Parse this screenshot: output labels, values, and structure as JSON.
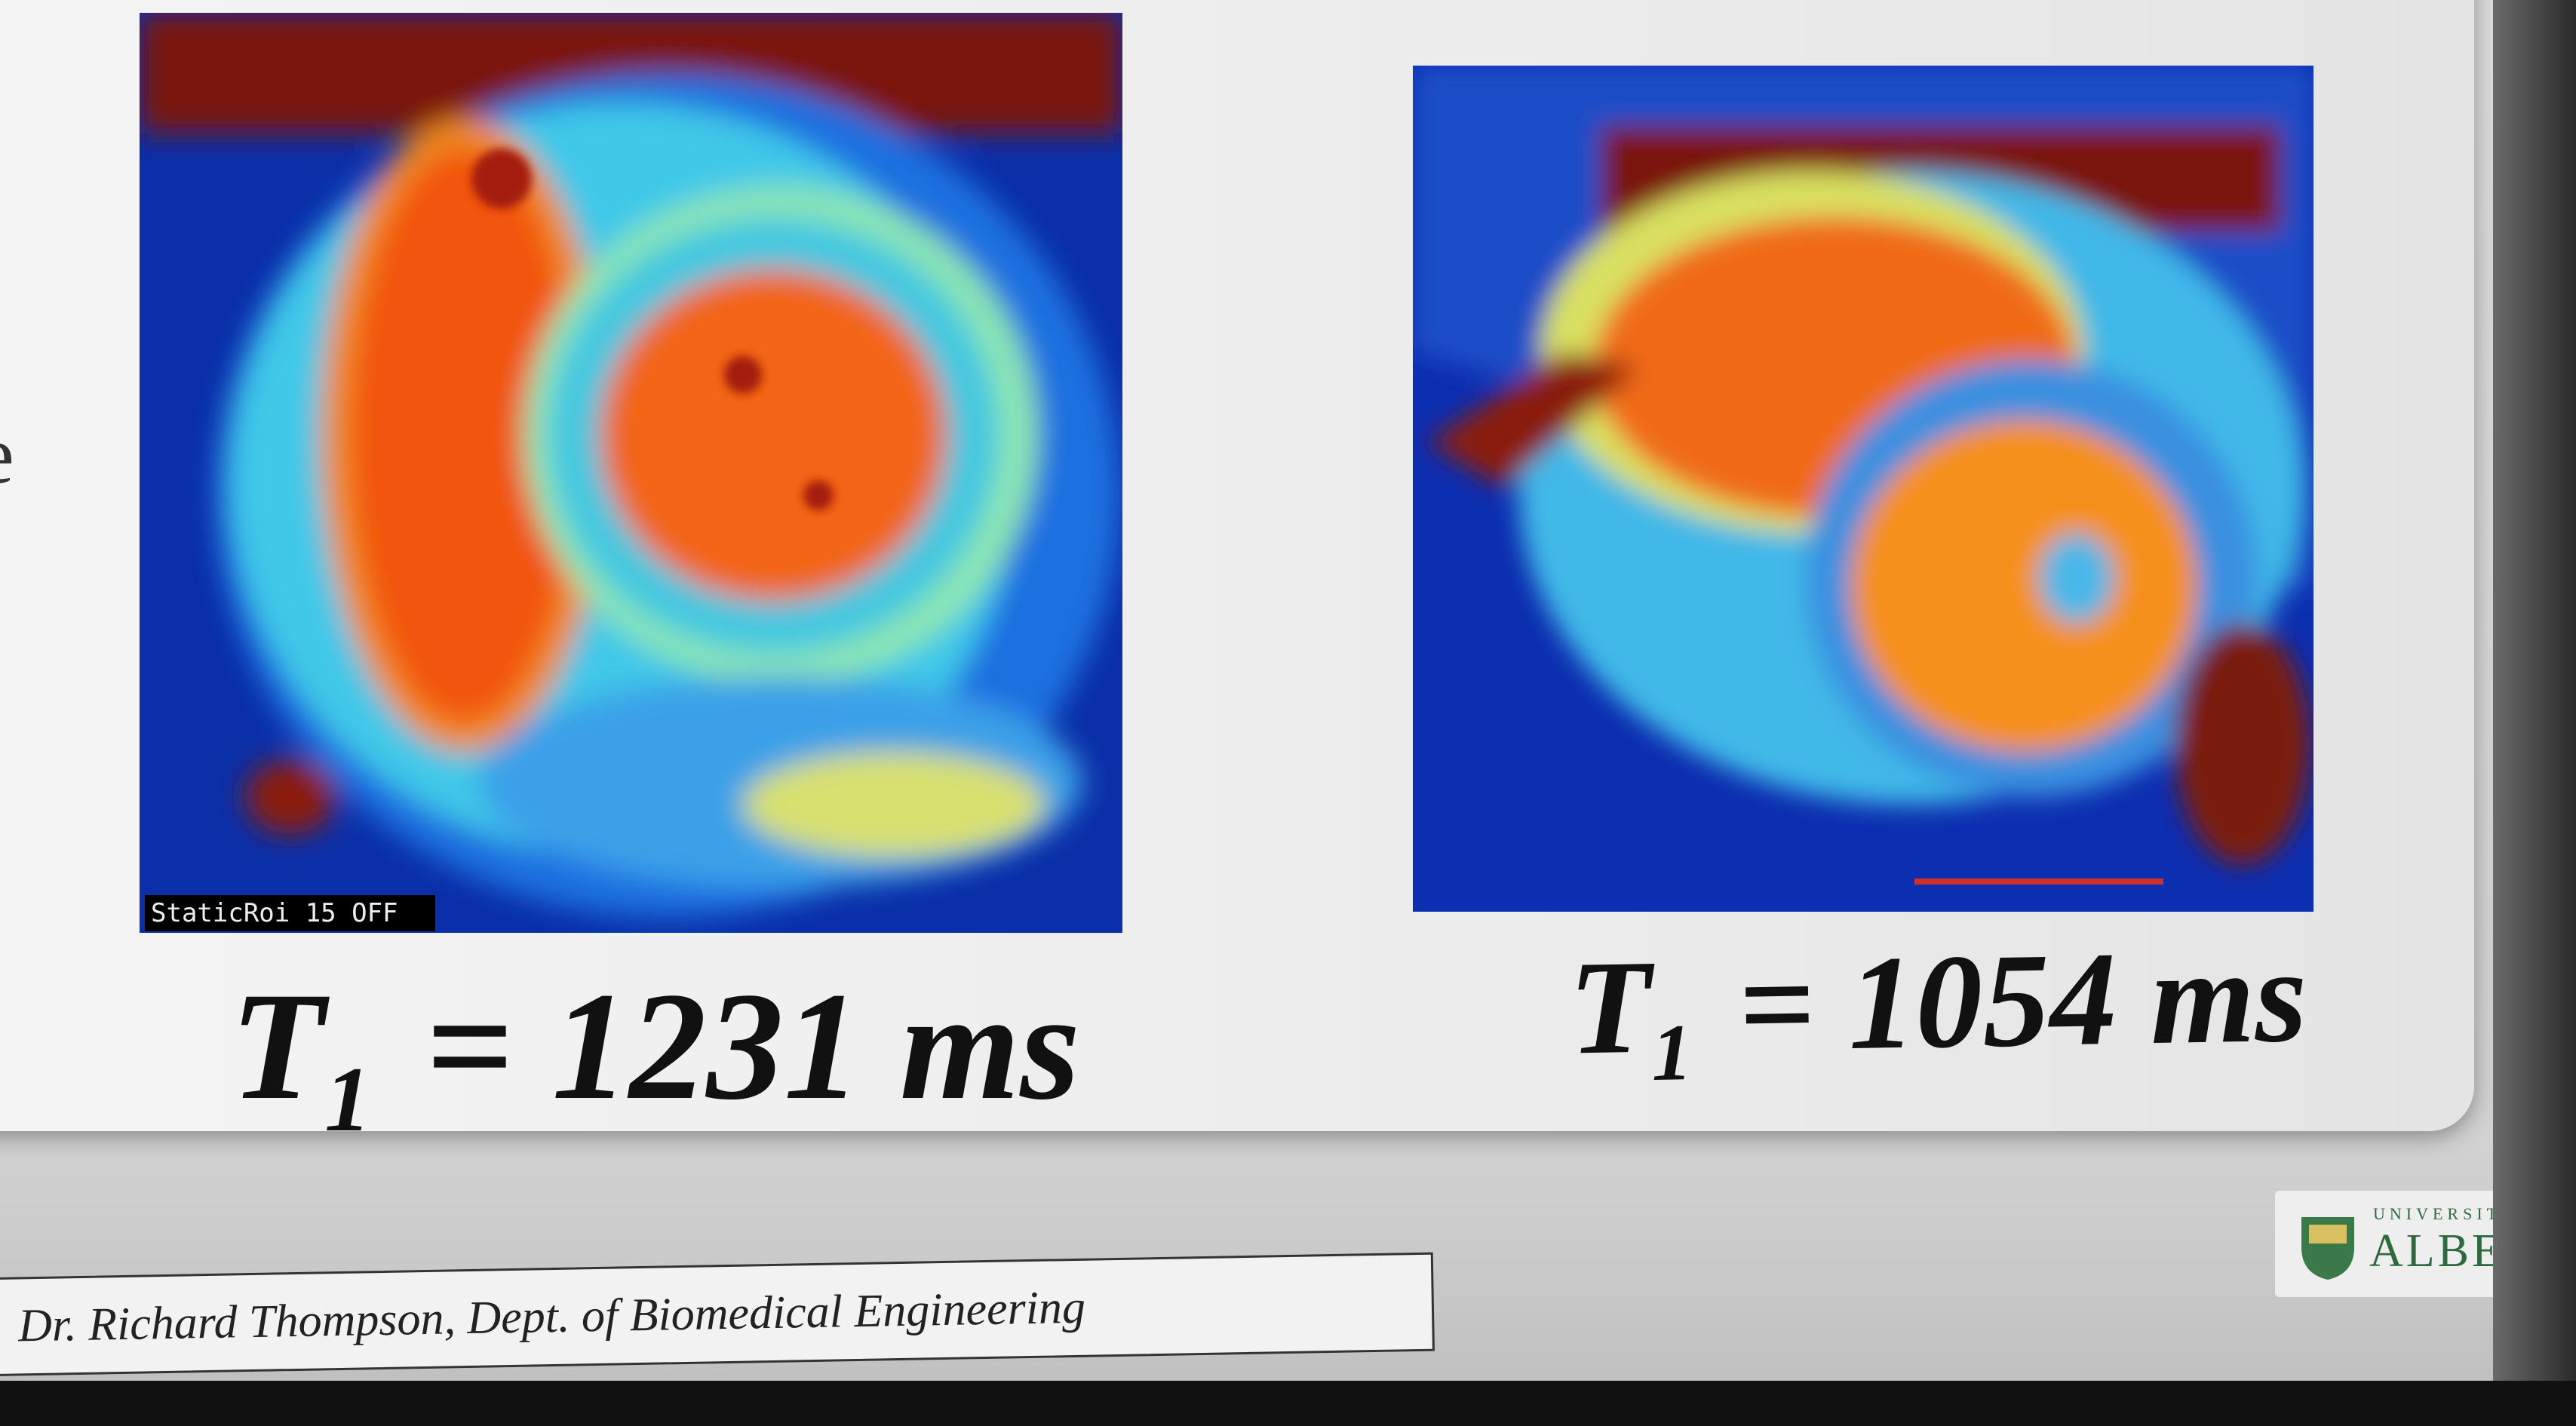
{
  "slide": {
    "cut_text": "e",
    "image_label": "StaticRoi 15 OFF",
    "captions": [
      {
        "symbol": "T",
        "subscript": "1",
        "text": "= 1231 ms"
      },
      {
        "symbol": "T",
        "subscript": "1",
        "text": "= 1054 ms"
      }
    ]
  },
  "footer": {
    "credit": "Dr. Richard Thompson, Dept. of Biomedical Engineering"
  },
  "logo": {
    "line1": "UNIVERSITY OF",
    "line2": "ALBERTA"
  }
}
